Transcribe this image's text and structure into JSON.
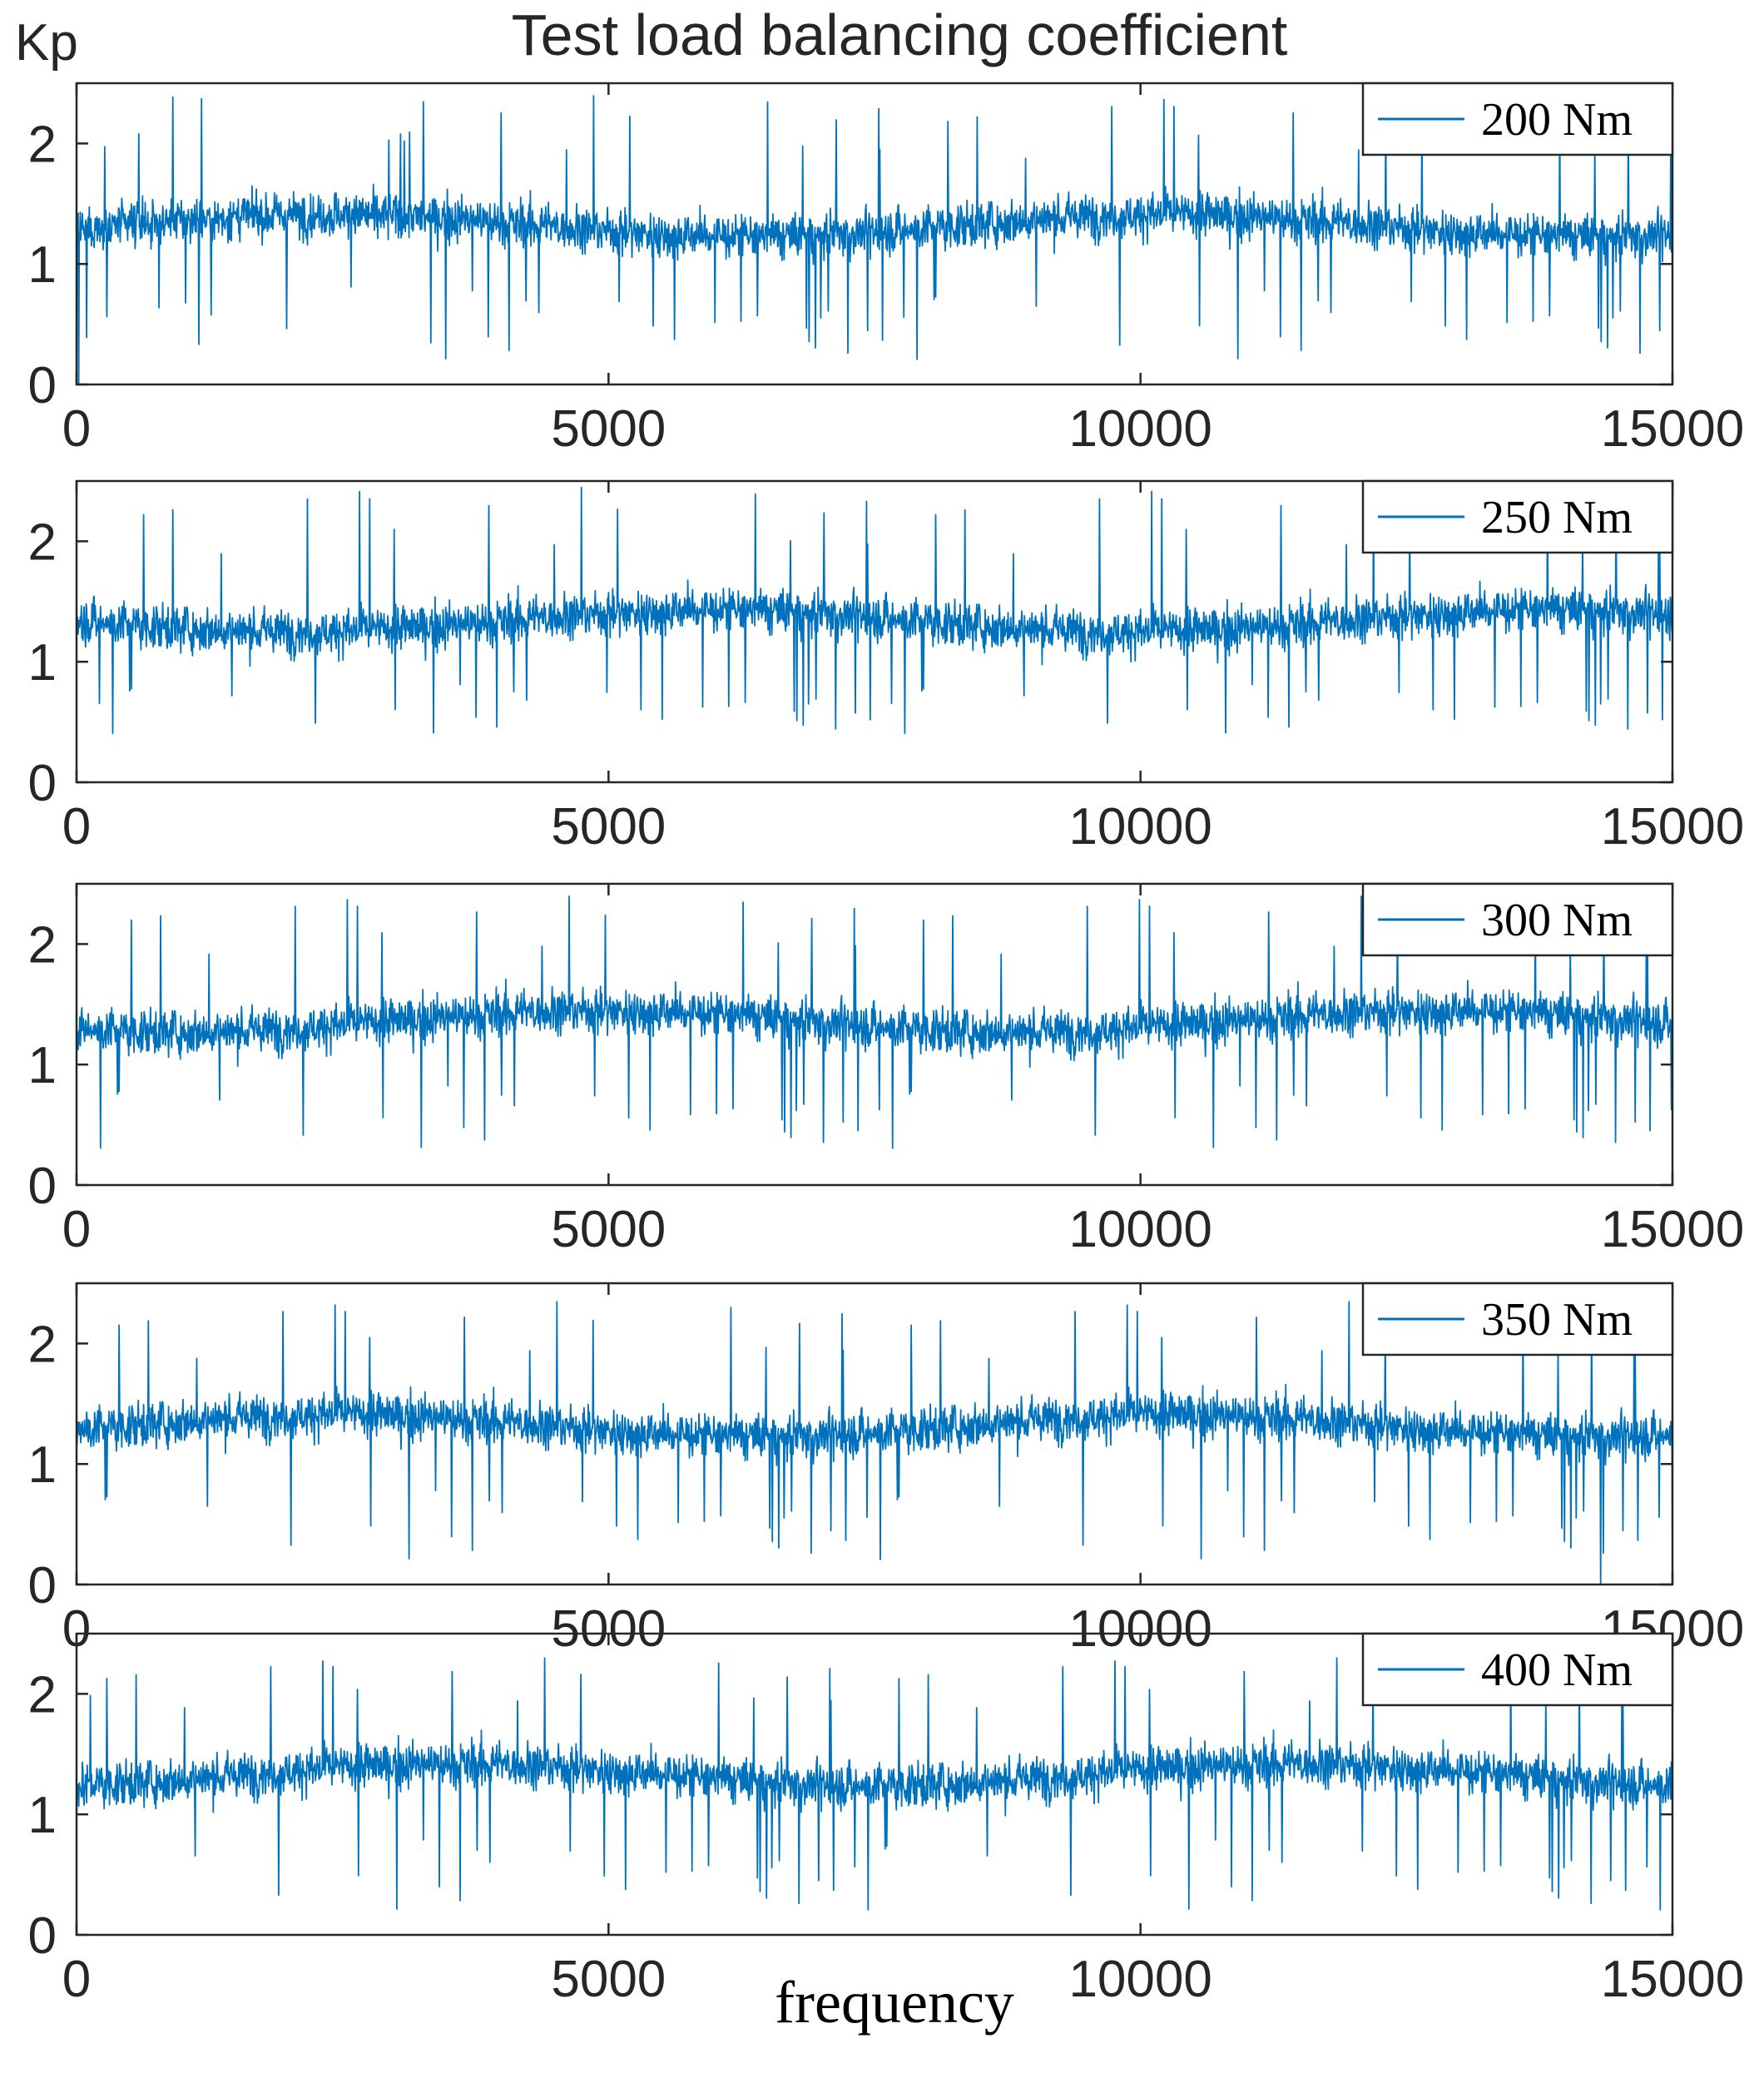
{
  "chart_data": {
    "type": "line",
    "title": "Test load balancing coefficient",
    "ylabel": "Kp",
    "xlabel": "frequency",
    "xlim": [
      0,
      15000
    ],
    "ylim": [
      0,
      2.5
    ],
    "xticks": [
      0,
      5000,
      10000,
      15000
    ],
    "xtick_labels": [
      "0",
      "5000",
      "10000",
      "15000"
    ],
    "yticks": [
      0,
      1,
      2
    ],
    "ytick_labels": [
      "0",
      "1",
      "2"
    ],
    "grid": false,
    "legend_position": "top-right",
    "color": "#0072BD",
    "panels": [
      {
        "name": "200 Nm",
        "mean": 1.32,
        "amplitude": 0.22,
        "min": 0.0,
        "max": 2.4
      },
      {
        "name": "250 Nm",
        "mean": 1.34,
        "amplitude": 0.22,
        "min": 0.4,
        "max": 2.45
      },
      {
        "name": "300 Nm",
        "mean": 1.36,
        "amplitude": 0.22,
        "min": 0.3,
        "max": 2.4
      },
      {
        "name": "350 Nm",
        "mean": 1.32,
        "amplitude": 0.22,
        "min": 0.0,
        "max": 2.35
      },
      {
        "name": "400 Nm",
        "mean": 1.33,
        "amplitude": 0.22,
        "min": 0.1,
        "max": 2.3
      }
    ]
  }
}
